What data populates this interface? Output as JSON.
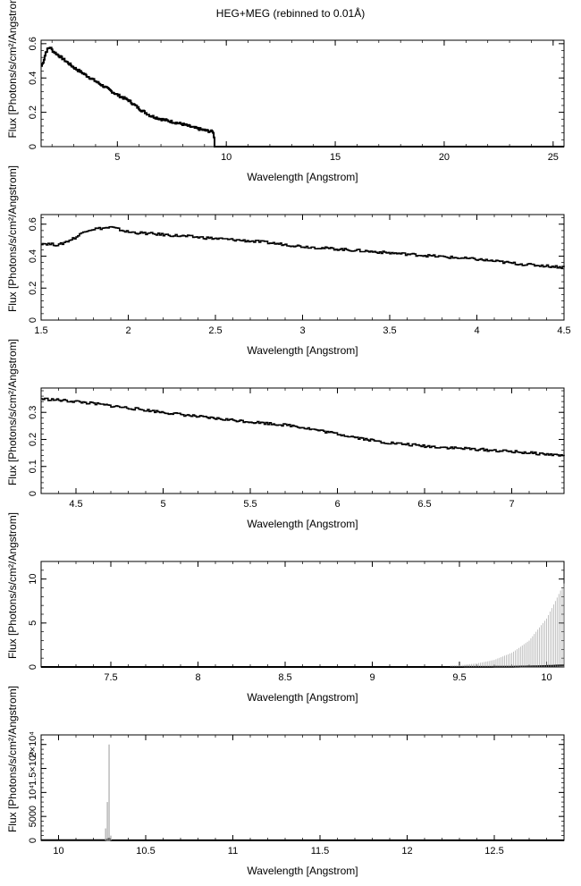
{
  "title": "HEG+MEG (rebinned to 0.01Å)",
  "chart_data": [
    {
      "type": "line",
      "xlabel": "Wavelength [Angstrom]",
      "ylabel": "Flux [Photons/s/cm²/Angstrom]",
      "xlim": [
        1.5,
        25.5
      ],
      "ylim": [
        0,
        0.62
      ],
      "xticks": [
        5,
        10,
        15,
        20,
        25
      ],
      "yticks": [
        0,
        0.2,
        0.4,
        0.6
      ],
      "series": [
        {
          "x": [
            1.5,
            1.6,
            1.7,
            1.8,
            1.9,
            2.0,
            2.2,
            2.5,
            3.0,
            3.5,
            4.0,
            4.5,
            5.0,
            5.5,
            6.0,
            6.5,
            7.0,
            7.5,
            8.0,
            8.5,
            9.0,
            9.4,
            9.45,
            10,
            15,
            20,
            25.5
          ],
          "y": [
            0.47,
            0.5,
            0.55,
            0.57,
            0.58,
            0.56,
            0.54,
            0.51,
            0.46,
            0.42,
            0.38,
            0.34,
            0.3,
            0.27,
            0.22,
            0.18,
            0.16,
            0.145,
            0.13,
            0.11,
            0.095,
            0.085,
            0.0,
            0.0,
            0.0,
            0.0,
            0.0
          ]
        }
      ]
    },
    {
      "type": "line",
      "xlabel": "Wavelength [Angstrom]",
      "ylabel": "Flux [Photons/s/cm²/Angstrom]",
      "xlim": [
        1.5,
        4.5
      ],
      "ylim": [
        0,
        0.66
      ],
      "xticks": [
        1.5,
        2,
        2.5,
        3,
        3.5,
        4,
        4.5
      ],
      "yticks": [
        0,
        0.2,
        0.4,
        0.6
      ],
      "series": [
        {
          "x": [
            1.5,
            1.6,
            1.7,
            1.75,
            1.8,
            1.9,
            2.0,
            2.25,
            2.5,
            2.75,
            3.0,
            3.25,
            3.5,
            3.75,
            4.0,
            4.25,
            4.5
          ],
          "y": [
            0.48,
            0.47,
            0.52,
            0.56,
            0.57,
            0.58,
            0.55,
            0.53,
            0.51,
            0.49,
            0.46,
            0.44,
            0.42,
            0.4,
            0.38,
            0.35,
            0.33
          ]
        }
      ]
    },
    {
      "type": "line",
      "xlabel": "Wavelength [Angstrom]",
      "ylabel": "Flux [Photons/s/cm²/Angstrom]",
      "xlim": [
        4.3,
        7.3
      ],
      "ylim": [
        0,
        0.39
      ],
      "xticks": [
        4.5,
        5,
        5.5,
        6,
        6.5,
        7
      ],
      "yticks": [
        0,
        0.1,
        0.2,
        0.3
      ],
      "series": [
        {
          "x": [
            4.3,
            4.5,
            4.75,
            5.0,
            5.25,
            5.5,
            5.75,
            6.0,
            6.25,
            6.5,
            6.75,
            7.0,
            7.3
          ],
          "y": [
            0.35,
            0.34,
            0.32,
            0.3,
            0.28,
            0.265,
            0.25,
            0.22,
            0.19,
            0.175,
            0.165,
            0.155,
            0.14
          ]
        }
      ]
    },
    {
      "type": "line",
      "xlabel": "Wavelength [Angstrom]",
      "ylabel": "Flux [Photons/s/cm²/Angstrom]",
      "xlim": [
        7.1,
        10.1
      ],
      "ylim": [
        0,
        12
      ],
      "xticks": [
        7.5,
        8,
        8.5,
        9,
        9.5,
        10
      ],
      "yticks": [
        0,
        5,
        10
      ],
      "series": [
        {
          "x": [
            7.1,
            8.0,
            9.0,
            9.3,
            9.5,
            9.6,
            9.7,
            9.8,
            9.9,
            10.0,
            10.05,
            10.1
          ],
          "y": [
            0.12,
            0.1,
            0.09,
            0.1,
            0.2,
            0.4,
            0.8,
            1.6,
            3.0,
            5.5,
            7.5,
            9.5
          ]
        }
      ]
    },
    {
      "type": "line",
      "xlabel": "Wavelength [Angstrom]",
      "ylabel": "Flux [Photons/s/cm²/Angstrom]",
      "xlim": [
        9.9,
        12.9
      ],
      "ylim": [
        0,
        22000
      ],
      "xticks": [
        10,
        10.5,
        11,
        11.5,
        12,
        12.5
      ],
      "yticks": [
        0,
        5000,
        10000,
        15000,
        20000
      ],
      "ytick_labels": [
        "0",
        "5000",
        "10⁴",
        "1.5×10⁴",
        "2×10⁴"
      ],
      "series": [
        {
          "x": [
            10.27,
            10.28,
            10.29,
            10.3
          ],
          "y": [
            2500,
            8000,
            20000,
            1000
          ]
        }
      ]
    }
  ]
}
